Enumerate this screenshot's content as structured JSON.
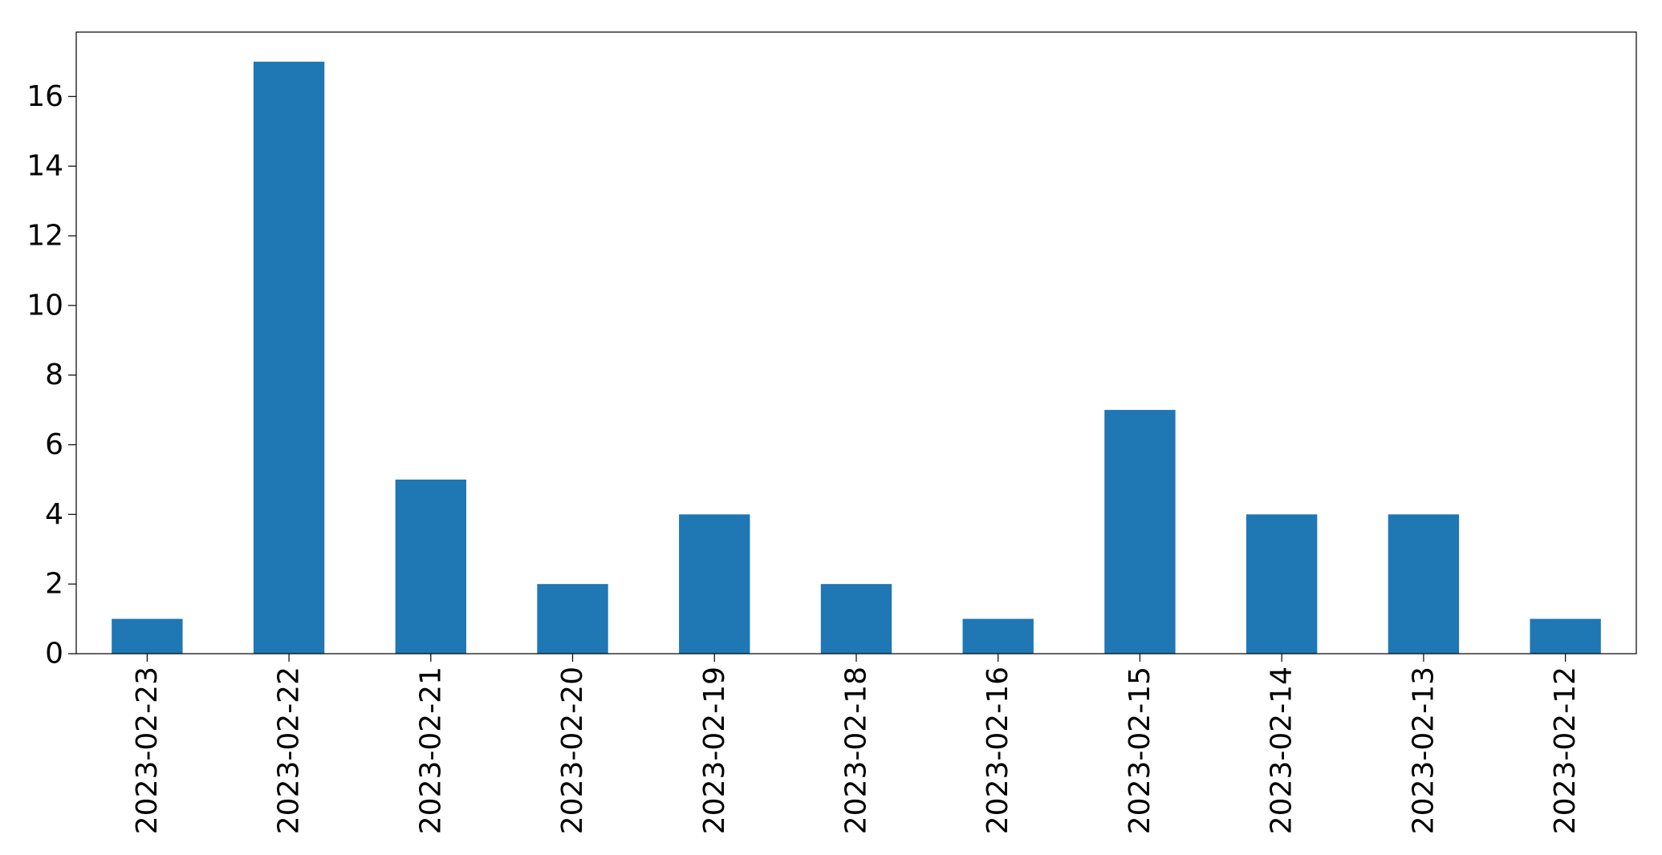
{
  "chart_data": {
    "type": "bar",
    "title": "",
    "xlabel": "",
    "ylabel": "",
    "categories": [
      "2023-02-23",
      "2023-02-22",
      "2023-02-21",
      "2023-02-20",
      "2023-02-19",
      "2023-02-18",
      "2023-02-16",
      "2023-02-15",
      "2023-02-14",
      "2023-02-13",
      "2023-02-12"
    ],
    "values": [
      1,
      17,
      5,
      2,
      4,
      2,
      1,
      7,
      4,
      4,
      1
    ],
    "ylim": [
      0,
      17.85
    ],
    "yticks": [
      0,
      2,
      4,
      6,
      8,
      10,
      12,
      14,
      16
    ],
    "bar_color": "#1f77b4",
    "grid": false,
    "legend": "none"
  }
}
